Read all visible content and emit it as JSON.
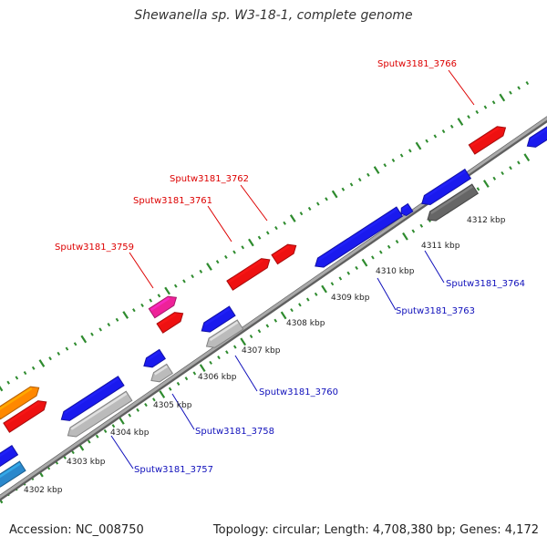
{
  "title": "Shewanella sp. W3-18-1, complete genome",
  "footer": {
    "accession": "Accession: NC_008750",
    "topology": "Topology: circular; Length: 4,708,380 bp; Genes: 4,172"
  },
  "colors": {
    "backbone": "#8a8a8a",
    "ticks": "#2e8b2e",
    "forward_gene": "#ee1111",
    "reverse_gene": "#1a1aee",
    "forward_label": "#dd0000",
    "reverse_label": "#1010bb"
  },
  "kbp_ticks": [
    {
      "label": "4302 kbp"
    },
    {
      "label": "4303 kbp"
    },
    {
      "label": "4304 kbp"
    },
    {
      "label": "4305 kbp"
    },
    {
      "label": "4306 kbp"
    },
    {
      "label": "4307 kbp"
    },
    {
      "label": "4308 kbp"
    },
    {
      "label": "4309 kbp"
    },
    {
      "label": "4310 kbp"
    },
    {
      "label": "4311 kbp"
    },
    {
      "label": "4312 kbp"
    }
  ],
  "gene_labels": [
    {
      "name": "Sputw3181_3766",
      "strand": "forward"
    },
    {
      "name": "Sputw3181_3762",
      "strand": "forward"
    },
    {
      "name": "Sputw3181_3761",
      "strand": "forward"
    },
    {
      "name": "Sputw3181_3759",
      "strand": "forward"
    },
    {
      "name": "Sputw3181_3764",
      "strand": "reverse"
    },
    {
      "name": "Sputw3181_3763",
      "strand": "reverse"
    },
    {
      "name": "Sputw3181_3760",
      "strand": "reverse"
    },
    {
      "name": "Sputw3181_3758",
      "strand": "reverse"
    },
    {
      "name": "Sputw3181_3757",
      "strand": "reverse"
    }
  ]
}
